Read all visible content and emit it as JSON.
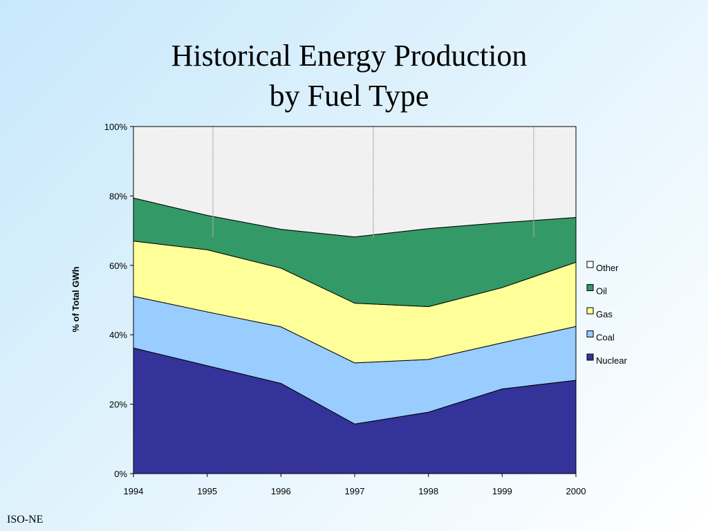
{
  "slide": {
    "title_line1": "Historical Energy Production",
    "title_line2": "by Fuel Type",
    "footer": "ISO-NE"
  },
  "chart_data": {
    "type": "area",
    "stacked": true,
    "x": [
      "1994",
      "1995",
      "1996",
      "1997",
      "1998",
      "1999",
      "2000"
    ],
    "ylabel": "% of Total GWh",
    "ylim": [
      0,
      100
    ],
    "yticks": [
      "0%",
      "20%",
      "40%",
      "60%",
      "80%",
      "100%"
    ],
    "grid": "vertical",
    "legend_position": "right",
    "series": [
      {
        "name": "Nuclear",
        "color": "#333399",
        "values": [
          36.2,
          31.1,
          26.0,
          14.3,
          17.7,
          24.4,
          26.9
        ]
      },
      {
        "name": "Coal",
        "color": "#99ccff",
        "values": [
          14.9,
          15.5,
          16.3,
          17.6,
          15.2,
          13.3,
          15.5
        ]
      },
      {
        "name": "Gas",
        "color": "#ffff99",
        "values": [
          15.9,
          17.9,
          16.9,
          17.2,
          15.2,
          15.9,
          18.5
        ]
      },
      {
        "name": "Oil",
        "color": "#339966",
        "values": [
          12.4,
          9.9,
          11.2,
          19.1,
          22.5,
          18.7,
          12.9
        ]
      },
      {
        "name": "Other",
        "color": "#f4f4f4",
        "values": [
          20.6,
          25.6,
          29.6,
          31.8,
          29.4,
          27.7,
          26.2
        ]
      }
    ]
  }
}
